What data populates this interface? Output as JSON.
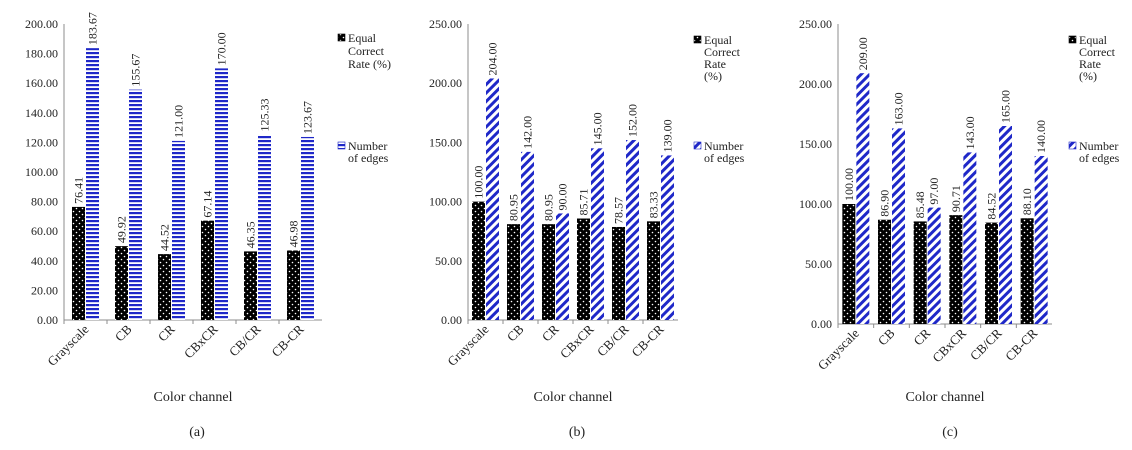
{
  "colors": {
    "black_series": "#000000",
    "blue_series": "#1f28c8",
    "axis": "#8c8c8c",
    "text": "#222222"
  },
  "chart_data": [
    {
      "type": "bar",
      "caption": "(a)",
      "xlabel": "Color channel",
      "ylabel": "",
      "ylim": [
        0,
        200
      ],
      "ytick_step": 20,
      "ytick_labels": [
        "0.00",
        "20.00",
        "40.00",
        "60.00",
        "80.00",
        "100.00",
        "120.00",
        "140.00",
        "160.00",
        "180.00",
        "200.00"
      ],
      "categories": [
        "Grayscale",
        "CB",
        "CR",
        "CBxCR",
        "CB/CR",
        "CB-CR"
      ],
      "legend_placement": "right",
      "series": [
        {
          "name": "Equal Correct Rate (%)",
          "legend_lines": [
            "Equal",
            "Correct",
            "Rate (%)"
          ],
          "pattern": "dots",
          "values": [
            76.41,
            49.92,
            44.52,
            67.14,
            46.35,
            46.98
          ],
          "labels": [
            "76.41",
            "49.92",
            "44.52",
            "67.14",
            "46.35",
            "46.98"
          ]
        },
        {
          "name": "Number of edges",
          "legend_lines": [
            "Number",
            "of edges"
          ],
          "pattern": "horizontal-stripes",
          "values": [
            183.67,
            155.67,
            121.0,
            170.0,
            125.33,
            123.67
          ],
          "labels": [
            "183.67",
            "155.67",
            "121.00",
            "170.00",
            "125.33",
            "123.67"
          ]
        }
      ]
    },
    {
      "type": "bar",
      "caption": "(b)",
      "xlabel": "Color channel",
      "ylabel": "",
      "ylim": [
        0,
        250
      ],
      "ytick_step": 50,
      "ytick_labels": [
        "0.00",
        "50.00",
        "100.00",
        "150.00",
        "200.00",
        "250.00"
      ],
      "categories": [
        "Grayscale",
        "CB",
        "CR",
        "CBxCR",
        "CB/CR",
        "CB-CR"
      ],
      "legend_placement": "right",
      "series": [
        {
          "name": "Equal Correct Rate (%)",
          "legend_lines": [
            "Equal",
            "Correct",
            "Rate",
            "(%)"
          ],
          "pattern": "dots",
          "values": [
            100.0,
            80.95,
            80.95,
            85.71,
            78.57,
            83.33
          ],
          "labels": [
            "100.00",
            "80.95",
            "80.95",
            "85.71",
            "78.57",
            "83.33"
          ]
        },
        {
          "name": "Number of edges",
          "legend_lines": [
            "Number",
            "of edges"
          ],
          "pattern": "diagonal-stripes",
          "values": [
            204.0,
            142.0,
            90.0,
            145.0,
            152.0,
            139.0
          ],
          "labels": [
            "204.00",
            "142.00",
            "90.00",
            "145.00",
            "152.00",
            "139.00"
          ]
        }
      ]
    },
    {
      "type": "bar",
      "caption": "(c)",
      "xlabel": "Color channel",
      "ylabel": "",
      "ylim": [
        0,
        250
      ],
      "ytick_step": 50,
      "ytick_labels": [
        "0.00",
        "50.00",
        "100.00",
        "150.00",
        "200.00",
        "250.00"
      ],
      "categories": [
        "Grayscale",
        "CB",
        "CR",
        "CBxCR",
        "CB/CR",
        "CB-CR"
      ],
      "legend_placement": "right",
      "series": [
        {
          "name": "Equal Correct Rate (%)",
          "legend_lines": [
            "Equal",
            "Correct",
            "Rate",
            "(%)"
          ],
          "pattern": "dots",
          "values": [
            100.0,
            86.9,
            85.48,
            90.71,
            84.52,
            88.1
          ],
          "labels": [
            "100.00",
            "86.90",
            "85.48",
            "90.71",
            "84.52",
            "88.10"
          ]
        },
        {
          "name": "Number of edges",
          "legend_lines": [
            "Number",
            "of edges"
          ],
          "pattern": "diagonal-stripes",
          "values": [
            209.0,
            163.0,
            97.0,
            143.0,
            165.0,
            140.0
          ],
          "labels": [
            "209.00",
            "163.00",
            "97.00",
            "143.00",
            "165.00",
            "140.00"
          ]
        }
      ]
    }
  ]
}
